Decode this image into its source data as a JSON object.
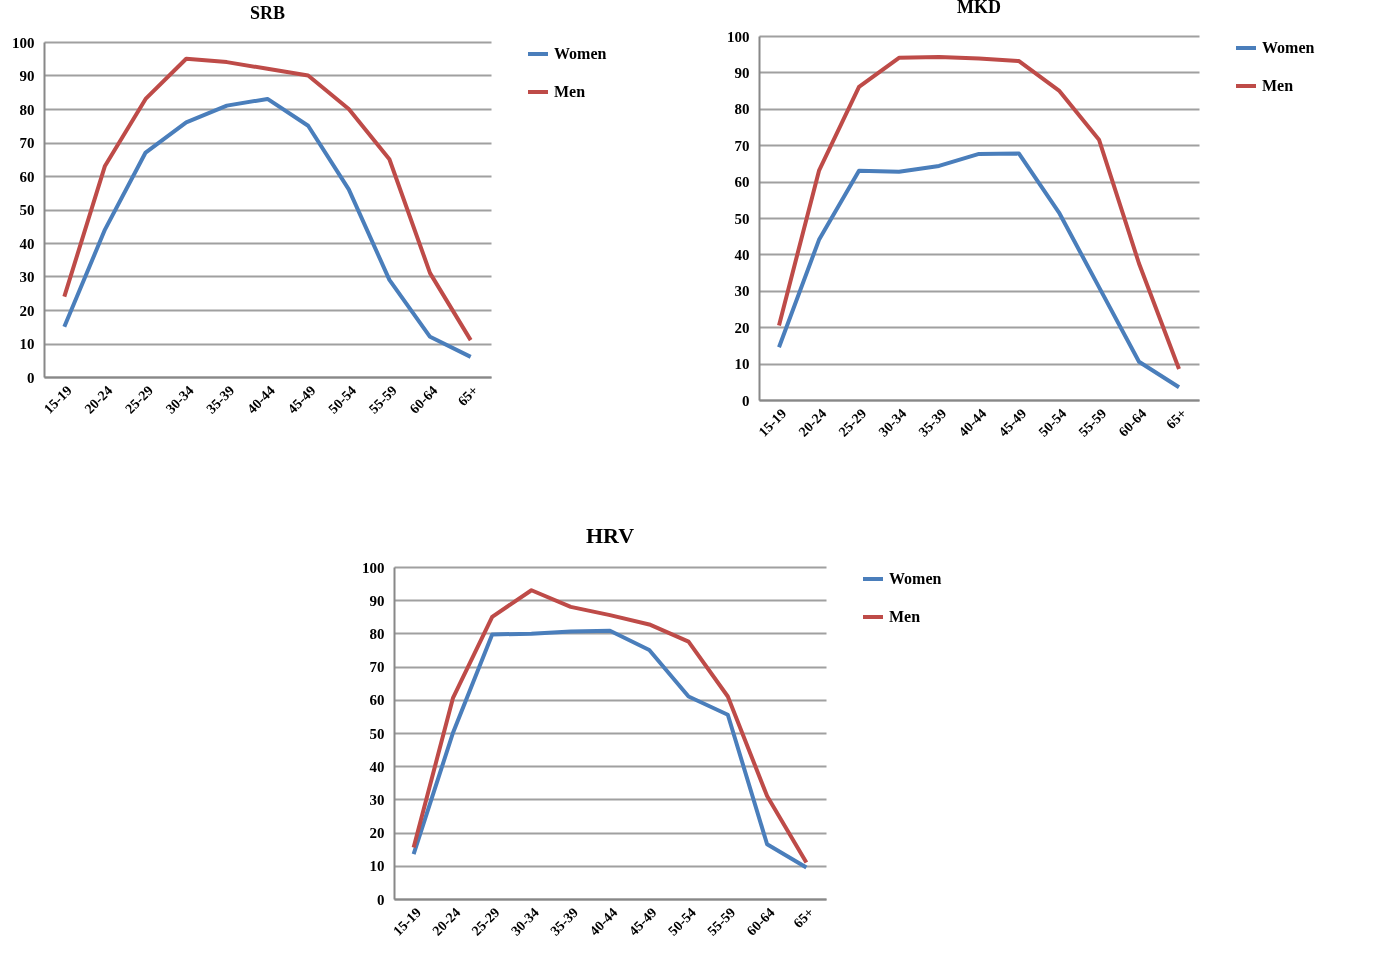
{
  "chart_data": [
    {
      "type": "line",
      "title": "SRB",
      "categories": [
        "15-19",
        "20-24",
        "25-29",
        "30-34",
        "35-39",
        "40-44",
        "45-49",
        "50-54",
        "55-59",
        "60-64",
        "65+"
      ],
      "ylim": [
        0,
        100
      ],
      "yticks": [
        0,
        10,
        20,
        30,
        40,
        50,
        60,
        70,
        80,
        90,
        100
      ],
      "grid": "y",
      "legend": "right",
      "series": [
        {
          "name": "Women",
          "color": "#4a7ebb",
          "values": [
            15,
            44,
            67,
            76,
            81,
            83,
            75,
            56,
            29,
            12,
            6
          ]
        },
        {
          "name": "Men",
          "color": "#be4b48",
          "values": [
            24,
            63,
            83,
            95,
            94,
            92,
            90,
            80,
            65,
            31,
            11
          ]
        }
      ]
    },
    {
      "type": "line",
      "title": "MKD",
      "categories": [
        "15-19",
        "20-24",
        "25-29",
        "30-34",
        "35-39",
        "40-44",
        "45-49",
        "50-54",
        "55-59",
        "60-64",
        "65+"
      ],
      "ylim": [
        0,
        100
      ],
      "yticks": [
        0,
        10,
        20,
        30,
        40,
        50,
        60,
        70,
        80,
        90,
        100
      ],
      "grid": "y",
      "legend": "right",
      "series": [
        {
          "name": "Women",
          "color": "#4a7ebb",
          "values": [
            14.5,
            44,
            63,
            62.7,
            64.3,
            67.6,
            67.7,
            51.5,
            31,
            10.5,
            3.5
          ]
        },
        {
          "name": "Men",
          "color": "#be4b48",
          "values": [
            20.5,
            63,
            86,
            94,
            94.2,
            93.8,
            93.1,
            85,
            71.5,
            37.5,
            8.5
          ]
        }
      ]
    },
    {
      "type": "line",
      "title": "HRV",
      "categories": [
        "15-19",
        "20-24",
        "25-29",
        "30-34",
        "35-39",
        "40-44",
        "45-49",
        "50-54",
        "55-59",
        "60-64",
        "65+"
      ],
      "ylim": [
        0,
        100
      ],
      "yticks": [
        0,
        10,
        20,
        30,
        40,
        50,
        60,
        70,
        80,
        90,
        100
      ],
      "grid": "y",
      "legend": "right",
      "series": [
        {
          "name": "Women",
          "color": "#4a7ebb",
          "values": [
            13.5,
            50,
            79.7,
            79.9,
            80.6,
            80.8,
            75,
            61,
            55.5,
            16.5,
            9.5
          ]
        },
        {
          "name": "Men",
          "color": "#be4b48",
          "values": [
            15.5,
            60.5,
            85,
            93,
            88,
            85.5,
            82.7,
            77.5,
            61,
            31,
            11
          ]
        }
      ]
    }
  ]
}
